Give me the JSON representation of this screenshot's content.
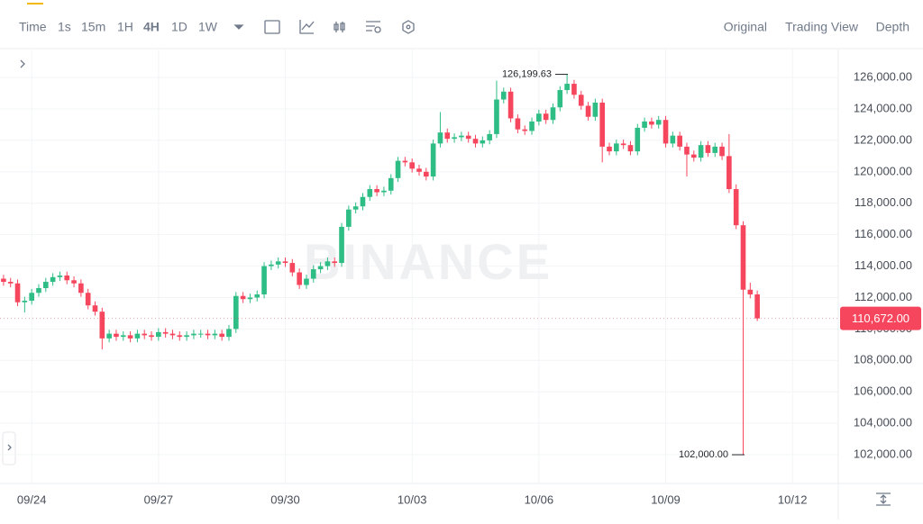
{
  "toolbar": {
    "intervals": [
      "Time",
      "1s",
      "15m",
      "1H",
      "4H",
      "1D",
      "1W"
    ],
    "active": "4H",
    "views": [
      "Original",
      "Trading View",
      "Depth"
    ],
    "active_view": "Original"
  },
  "chart_data": {
    "type": "candlestick",
    "watermark": "BINANCE",
    "up_color": "#2ebd85",
    "down_color": "#f6465d",
    "grid": true,
    "categories": [
      null,
      null,
      null,
      null,
      "09/24",
      null,
      null,
      null,
      null,
      null,
      null,
      null,
      null,
      null,
      null,
      null,
      null,
      null,
      null,
      null,
      null,
      null,
      "09/27",
      null,
      null,
      null,
      null,
      null,
      null,
      null,
      null,
      null,
      null,
      null,
      null,
      null,
      null,
      null,
      null,
      null,
      "09/30",
      null,
      null,
      null,
      null,
      null,
      null,
      null,
      null,
      null,
      null,
      null,
      null,
      null,
      null,
      null,
      null,
      null,
      "10/03",
      null,
      null,
      null,
      null,
      null,
      null,
      null,
      null,
      null,
      null,
      null,
      null,
      null,
      null,
      null,
      null,
      null,
      "10/06",
      null,
      null,
      null,
      null,
      null,
      null,
      null,
      null,
      null,
      null,
      null,
      null,
      null,
      null,
      null,
      null,
      null,
      "10/09",
      null,
      null,
      null,
      null,
      null,
      null,
      null,
      null,
      null,
      null,
      null,
      null,
      null,
      null,
      null,
      null,
      null,
      "10/12",
      null,
      null,
      null,
      null,
      null,
      null
    ],
    "open": [
      113200,
      113000,
      112900,
      111700,
      111800,
      112300,
      112600,
      113000,
      113300,
      113400,
      113100,
      112900,
      112300,
      111500,
      111100,
      109400,
      109700,
      109500,
      109600,
      109400,
      109700,
      109600,
      109500,
      109800,
      109700,
      109600,
      109500,
      109600,
      109700,
      109700,
      109600,
      109700,
      109500,
      110000,
      112100,
      111900,
      112000,
      112200,
      114000,
      114100,
      114300,
      114200,
      113600,
      112800,
      113200,
      113800,
      114000,
      114300,
      114200,
      116500,
      117600,
      117800,
      118400,
      118900,
      118700,
      118800,
      119600,
      120700,
      120600,
      120200,
      120000,
      119700,
      121800,
      122500,
      122100,
      122200,
      122300,
      122100,
      121800,
      122000,
      122400,
      124600,
      125100,
      123400,
      122700,
      122600,
      123200,
      123700,
      123300,
      124100,
      125200,
      125600,
      124900,
      124200,
      123500,
      124400,
      121600,
      121300,
      121800,
      121700,
      121300,
      122800,
      123200,
      123000,
      123300,
      121800,
      122300,
      121600,
      121100,
      120900,
      121700,
      121200,
      121600,
      121000,
      118900,
      116600,
      112500,
      112200,
      null,
      null,
      null,
      null,
      null,
      null,
      null,
      null,
      null,
      null,
      null
    ],
    "high": [
      113450,
      113250,
      113150,
      112050,
      112550,
      112850,
      113250,
      113550,
      113650,
      113650,
      113350,
      113150,
      112550,
      111750,
      111350,
      109950,
      109950,
      109850,
      109850,
      109950,
      109950,
      109850,
      110050,
      110050,
      109950,
      109850,
      109850,
      109950,
      109950,
      109950,
      109950,
      109950,
      110250,
      112350,
      112350,
      112250,
      112450,
      114250,
      114350,
      114550,
      114550,
      114450,
      113850,
      113450,
      114050,
      114250,
      114550,
      114550,
      116750,
      117850,
      118050,
      118650,
      119150,
      119150,
      119050,
      119850,
      120950,
      120950,
      120850,
      120450,
      120250,
      122050,
      123800,
      122750,
      122450,
      122550,
      122550,
      122350,
      122250,
      122650,
      125800,
      125350,
      125350,
      123650,
      122950,
      123450,
      123950,
      123950,
      124350,
      125450,
      126199.63,
      125850,
      125150,
      124450,
      124650,
      124650,
      121850,
      122050,
      122050,
      121950,
      123050,
      123450,
      123450,
      123550,
      123550,
      122550,
      122550,
      121850,
      121350,
      121950,
      121950,
      121850,
      121850,
      122400,
      119200,
      116850,
      112950,
      112450,
      null,
      null,
      null,
      null,
      null,
      null,
      null,
      null,
      null,
      null,
      null
    ],
    "low": [
      112750,
      112650,
      111450,
      111050,
      111550,
      112050,
      112350,
      112750,
      113050,
      112850,
      112650,
      112050,
      111250,
      110850,
      108700,
      109150,
      109250,
      109250,
      109150,
      109150,
      109350,
      109250,
      109250,
      109450,
      109350,
      109250,
      109250,
      109350,
      109450,
      109350,
      109350,
      109250,
      109250,
      109750,
      111650,
      111650,
      111750,
      111950,
      113750,
      113850,
      113950,
      113350,
      112550,
      112550,
      112950,
      113550,
      113750,
      113950,
      113950,
      116250,
      117350,
      117550,
      118150,
      118450,
      118450,
      118550,
      119350,
      120350,
      119950,
      119750,
      119450,
      119450,
      121550,
      121850,
      121850,
      121950,
      121850,
      121550,
      121550,
      121750,
      122150,
      124350,
      123150,
      122450,
      122350,
      122350,
      122950,
      123050,
      123050,
      123850,
      124950,
      124650,
      123950,
      123250,
      123250,
      120600,
      121050,
      121050,
      121450,
      121050,
      121050,
      122550,
      122750,
      122750,
      121550,
      121550,
      121350,
      119700,
      120650,
      120650,
      120950,
      120950,
      120750,
      118650,
      116350,
      102000,
      111950,
      110500,
      null,
      null,
      null,
      null,
      null,
      null,
      null,
      null,
      null,
      null,
      null
    ],
    "close": [
      113000,
      112900,
      111700,
      111800,
      112300,
      112600,
      113000,
      113300,
      113400,
      113100,
      112900,
      112300,
      111500,
      111100,
      109400,
      109700,
      109500,
      109600,
      109400,
      109700,
      109600,
      109500,
      109800,
      109700,
      109600,
      109500,
      109600,
      109700,
      109700,
      109600,
      109700,
      109500,
      110000,
      112100,
      111900,
      112000,
      112200,
      114000,
      114100,
      114300,
      114200,
      113600,
      112800,
      113200,
      113800,
      114000,
      114300,
      114200,
      116500,
      117600,
      117800,
      118400,
      118900,
      118700,
      118800,
      119600,
      120700,
      120600,
      120200,
      120000,
      119700,
      121800,
      122500,
      122100,
      122200,
      122300,
      122100,
      121800,
      122000,
      122400,
      124600,
      125100,
      123400,
      122700,
      122600,
      123200,
      123700,
      123300,
      124100,
      125200,
      125600,
      124900,
      124200,
      123500,
      124400,
      121600,
      121300,
      121800,
      121700,
      121300,
      122800,
      123200,
      123000,
      123300,
      121800,
      122300,
      121600,
      121100,
      120900,
      121700,
      121200,
      121600,
      121000,
      118900,
      116600,
      112500,
      112200,
      110672,
      null,
      null,
      null,
      null,
      null,
      null,
      null,
      null,
      null,
      null,
      null
    ],
    "ylim": [
      100170,
      127780
    ],
    "yticks": [
      {
        "value": 102000,
        "label": "102,000.00"
      },
      {
        "value": 104000,
        "label": "104,000.00"
      },
      {
        "value": 106000,
        "label": "106,000.00"
      },
      {
        "value": 108000,
        "label": "108,000.00"
      },
      {
        "value": 110000,
        "label": "110,000.00"
      },
      {
        "value": 112000,
        "label": "112,000.00"
      },
      {
        "value": 114000,
        "label": "114,000.00"
      },
      {
        "value": 116000,
        "label": "116,000.00"
      },
      {
        "value": 118000,
        "label": "118,000.00"
      },
      {
        "value": 120000,
        "label": "120,000.00"
      },
      {
        "value": 122000,
        "label": "122,000.00"
      },
      {
        "value": 124000,
        "label": "124,000.00"
      },
      {
        "value": 126000,
        "label": "126,000.00"
      }
    ],
    "annotations": [
      {
        "value": 126199.63,
        "label": "126,199.63"
      },
      {
        "value": 102000,
        "label": "102,000.00"
      }
    ],
    "last_price": {
      "value": 110672,
      "label": "110,672.00"
    }
  }
}
